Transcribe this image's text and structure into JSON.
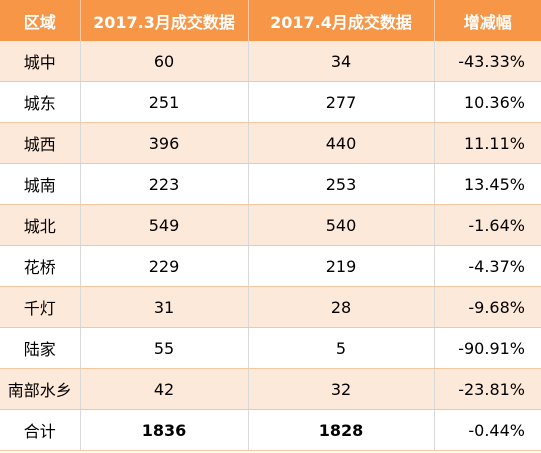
{
  "table": {
    "headers": [
      "区域",
      "2017.3月成交数据",
      "2017.4月成交数据",
      "增减幅"
    ],
    "rows": [
      [
        "城中",
        "60",
        "34",
        "-43.33%"
      ],
      [
        "城东",
        "251",
        "277",
        "10.36%"
      ],
      [
        "城西",
        "396",
        "440",
        "11.11%"
      ],
      [
        "城南",
        "223",
        "253",
        "13.45%"
      ],
      [
        "城北",
        "549",
        "540",
        "-1.64%"
      ],
      [
        "花桥",
        "229",
        "219",
        "-4.37%"
      ],
      [
        "千灯",
        "31",
        "28",
        "-9.68%"
      ],
      [
        "陆家",
        "55",
        "5",
        "-90.91%"
      ],
      [
        "南部水乡",
        "42",
        "32",
        "-23.81%"
      ]
    ],
    "total": [
      "合计",
      "1836",
      "1828",
      "-0.44%"
    ]
  },
  "colors": {
    "header_bg": "#f79646",
    "row_odd_bg": "#fde9d9",
    "row_even_bg": "#ffffff"
  }
}
